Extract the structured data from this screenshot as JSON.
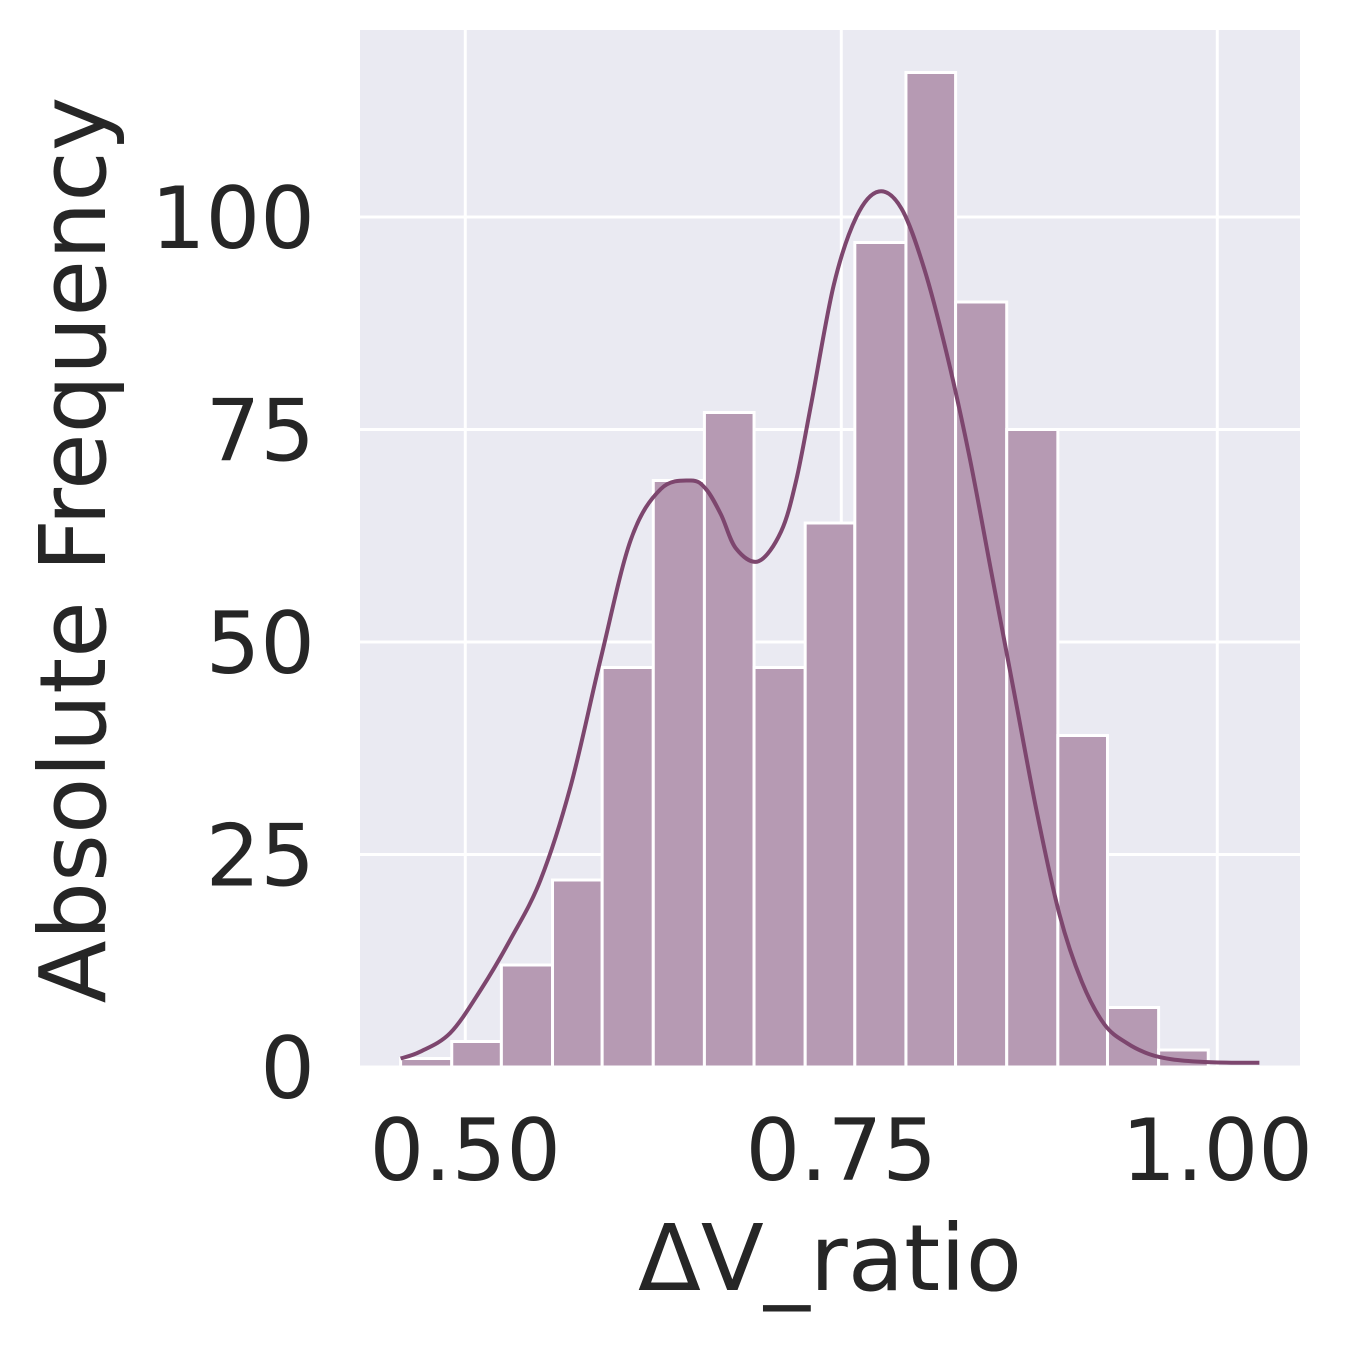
{
  "chart_data": {
    "type": "bar",
    "subtype": "histogram-with-kde",
    "title": "",
    "xlabel": "ΔV_ratio",
    "ylabel": "Absolute Frequency",
    "xlim": [
      0.43,
      1.055
    ],
    "ylim": [
      0,
      122
    ],
    "xticks": [
      0.5,
      0.75,
      1.0
    ],
    "xtick_labels": [
      "0.50",
      "0.75",
      "1.00"
    ],
    "yticks": [
      0,
      25,
      50,
      75,
      100
    ],
    "ytick_labels": [
      "0",
      "25",
      "50",
      "75",
      "100"
    ],
    "grid": true,
    "bins": [
      {
        "x0": 0.457,
        "x1": 0.491,
        "count": 1
      },
      {
        "x0": 0.491,
        "x1": 0.524,
        "count": 3
      },
      {
        "x0": 0.524,
        "x1": 0.558,
        "count": 12
      },
      {
        "x0": 0.558,
        "x1": 0.591,
        "count": 22
      },
      {
        "x0": 0.591,
        "x1": 0.625,
        "count": 47
      },
      {
        "x0": 0.625,
        "x1": 0.659,
        "count": 69
      },
      {
        "x0": 0.659,
        "x1": 0.692,
        "count": 77
      },
      {
        "x0": 0.692,
        "x1": 0.726,
        "count": 47
      },
      {
        "x0": 0.726,
        "x1": 0.759,
        "count": 64
      },
      {
        "x0": 0.759,
        "x1": 0.793,
        "count": 97
      },
      {
        "x0": 0.793,
        "x1": 0.826,
        "count": 117
      },
      {
        "x0": 0.826,
        "x1": 0.86,
        "count": 90
      },
      {
        "x0": 0.86,
        "x1": 0.894,
        "count": 75
      },
      {
        "x0": 0.894,
        "x1": 0.927,
        "count": 39
      },
      {
        "x0": 0.927,
        "x1": 0.961,
        "count": 7
      },
      {
        "x0": 0.961,
        "x1": 0.994,
        "count": 2
      },
      {
        "x0": 0.994,
        "x1": 1.028,
        "count": 0
      }
    ],
    "kde": {
      "x": [
        0.457,
        0.47,
        0.49,
        0.51,
        0.53,
        0.55,
        0.57,
        0.59,
        0.61,
        0.63,
        0.65,
        0.66,
        0.67,
        0.68,
        0.695,
        0.71,
        0.72,
        0.73,
        0.745,
        0.76,
        0.775,
        0.79,
        0.805,
        0.82,
        0.835,
        0.85,
        0.865,
        0.88,
        0.895,
        0.91,
        0.925,
        0.94,
        0.955,
        0.97,
        0.99,
        1.01,
        1.028
      ],
      "y": [
        1,
        1.8,
        4,
        9,
        15,
        22,
        33,
        48,
        62,
        68,
        69,
        68,
        65,
        61,
        59.5,
        63,
        69,
        78,
        92,
        100,
        103,
        101,
        94,
        84,
        72,
        58,
        44,
        30,
        18,
        10,
        5,
        2.8,
        1.5,
        0.9,
        0.6,
        0.5,
        0.5
      ]
    },
    "colors": {
      "bar_fill": "#b69ab3",
      "bar_edge": "#ffffff",
      "kde_line": "#7d466e",
      "plot_background": "#eaeaf2",
      "grid": "#ffffff"
    }
  }
}
